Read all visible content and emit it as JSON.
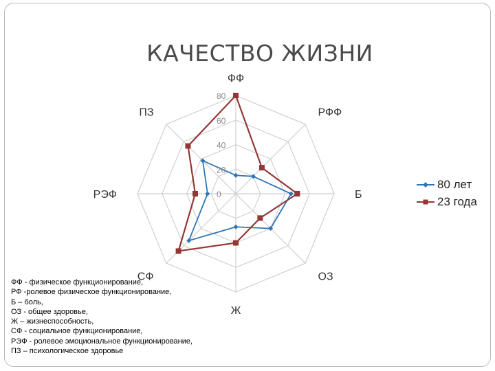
{
  "title": "КАЧЕСТВО ЖИЗНИ",
  "chart_data": {
    "type": "radar",
    "title": "КАЧЕСТВО ЖИЗНИ",
    "categories": [
      "ФФ",
      "РФФ",
      "Б",
      "ОЗ",
      "Ж",
      "СФ",
      "РЭФ",
      "ПЗ"
    ],
    "radial_ticks": [
      "0",
      "20",
      "40",
      "60",
      "80"
    ],
    "rlim": [
      0,
      80
    ],
    "grid": true,
    "legend_position": "right",
    "series": [
      {
        "name": "80 лет",
        "color": "#2e75b6",
        "marker": "diamond",
        "values": [
          15,
          20,
          45,
          40,
          27,
          54,
          23,
          38
        ]
      },
      {
        "name": "23 года",
        "color": "#943634",
        "marker": "square",
        "values": [
          80,
          30,
          50,
          28,
          40,
          66,
          33,
          55
        ]
      }
    ]
  },
  "notes": [
    "ФФ - физическое функционирование,",
    "РФ -ролевое физическое функционирование,",
    "Б – боль,",
    "ОЗ - общее здоровье,",
    "Ж – жизнеспособность,",
    "СФ - социальное функционирование,",
    "РЭФ - ролевое эмоциональное функционирование,",
    "ПЗ – психологическое здоровье"
  ]
}
